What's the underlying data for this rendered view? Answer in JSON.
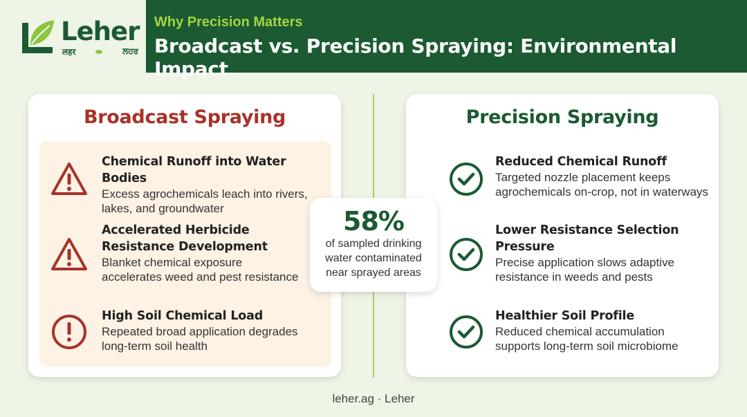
{
  "brand": {
    "name": "Leher",
    "sub_left": "लहर",
    "sub_right": "ਲਹਰ"
  },
  "header": {
    "kicker": "Why Precision Matters",
    "title": "Broadcast vs. Precision Spraying: Environmental Impact"
  },
  "colors": {
    "brand_green": "#1b5a33",
    "accent_lime": "#a6d43e",
    "warning_red": "#a8322a",
    "panel_cream": "#fdf2e4",
    "background": "#eef4e6"
  },
  "broadcast": {
    "title": "Broadcast Spraying",
    "items": [
      {
        "icon": "warning-triangle-icon",
        "title_lines": [
          "Chemical Runoff into Water Bodies"
        ],
        "desc_lines": [
          "Excess agrochemicals leach into rivers,",
          "lakes, and groundwater"
        ]
      },
      {
        "icon": "warning-triangle-icon",
        "title_lines": [
          "Accelerated Herbicide",
          "Resistance Development"
        ],
        "desc_lines": [
          "Blanket chemical exposure",
          "accelerates weed and pest resistance"
        ]
      },
      {
        "icon": "alert-circle-icon",
        "title_lines": [
          "High Soil Chemical Load"
        ],
        "desc_lines": [
          "Repeated broad application degrades",
          "long-term soil health"
        ]
      }
    ]
  },
  "precision": {
    "title": "Precision Spraying",
    "items": [
      {
        "icon": "check-circle-icon",
        "title_lines": [
          "Reduced Chemical Runoff"
        ],
        "desc_lines": [
          "Targeted nozzle placement keeps",
          "agrochemicals on-crop, not in waterways"
        ]
      },
      {
        "icon": "check-circle-icon",
        "title_lines": [
          "Lower Resistance Selection",
          "Pressure"
        ],
        "desc_lines": [
          "Precise application slows adaptive",
          "resistance in weeds and pests"
        ]
      },
      {
        "icon": "check-circle-icon",
        "title_lines": [
          "Healthier Soil Profile"
        ],
        "desc_lines": [
          "Reduced chemical accumulation",
          "supports long-term soil microbiome"
        ]
      }
    ]
  },
  "stat": {
    "value": "58%",
    "desc_lines": [
      "of sampled drinking",
      "water contaminated",
      "near sprayed areas"
    ]
  },
  "footer": {
    "text": "leher.ag · Leher"
  }
}
